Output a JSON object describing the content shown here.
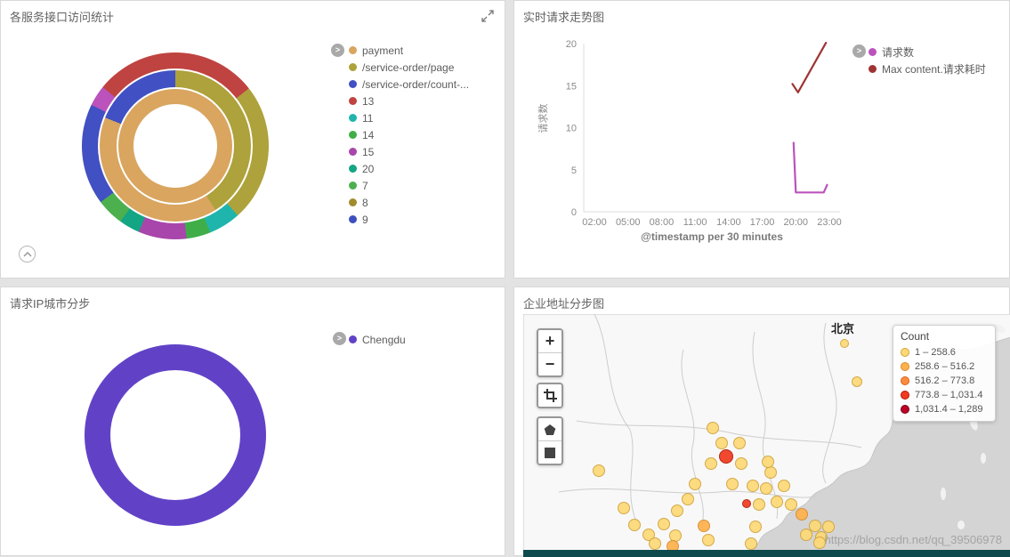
{
  "panels": {
    "services": {
      "title": "各服务接口访问统计",
      "legend": [
        {
          "label": "payment",
          "color": "#d9a55f"
        },
        {
          "label": "/service-order/page",
          "color": "#ada23b"
        },
        {
          "label": "/service-order/count-...",
          "color": "#4150c2"
        },
        {
          "label": "13",
          "color": "#bf4340"
        },
        {
          "label": "11",
          "color": "#1fb5ad"
        },
        {
          "label": "14",
          "color": "#3fae49"
        },
        {
          "label": "15",
          "color": "#a846ab"
        },
        {
          "label": "20",
          "color": "#13a584"
        },
        {
          "label": "7",
          "color": "#4cb04f"
        },
        {
          "label": "8",
          "color": "#a08b2d"
        },
        {
          "label": "9",
          "color": "#3b50bd"
        }
      ]
    },
    "trend": {
      "title": "实时请求走势图",
      "ylabel": "请求数",
      "xlabel": "@timestamp per 30 minutes",
      "legend": [
        {
          "label": "请求数",
          "color": "#bc52bc"
        },
        {
          "label": "Max content.请求耗时",
          "color": "#9e3533"
        }
      ]
    },
    "city": {
      "title": "请求IP城市分步",
      "legend": [
        {
          "label": "Chengdu",
          "color": "#6142c7"
        }
      ]
    },
    "map": {
      "title": "企业地址分步图",
      "beijing_label": "北京",
      "legend_title": "Count",
      "watermark": "https://blog.csdn.net/qq_39506978",
      "controls": {
        "zoom_in": "+",
        "zoom_out": "−"
      }
    }
  },
  "chart_data": [
    {
      "type": "pie",
      "variant": "sunburst",
      "title": "各服务接口访问统计",
      "legend": [
        "payment",
        "/service-order/page",
        "/service-order/count-...",
        "13",
        "11",
        "14",
        "15",
        "20",
        "7",
        "8",
        "9"
      ],
      "rings": {
        "inner": [
          {
            "label": "payment",
            "color": "#d9a55f",
            "from": 0,
            "to": 360
          }
        ],
        "middle": [
          {
            "label": "/service-order/page",
            "color": "#ada23b",
            "from": 0,
            "to": 148
          },
          {
            "label": "payment",
            "color": "#d9a55f",
            "from": 148,
            "to": 292
          },
          {
            "label": "/service-order/count-...",
            "color": "#4150c2",
            "from": 292,
            "to": 360
          }
        ],
        "outer": [
          {
            "label": "13",
            "color": "#bf4340",
            "from": 0,
            "to": 52
          },
          {
            "label": "8",
            "color": "#ada23b",
            "from": 52,
            "to": 138
          },
          {
            "label": "11",
            "color": "#1fb5ad",
            "from": 138,
            "to": 158
          },
          {
            "label": "14",
            "color": "#3fae49",
            "from": 158,
            "to": 173
          },
          {
            "label": "15",
            "color": "#a846ab",
            "from": 173,
            "to": 203
          },
          {
            "label": "20",
            "color": "#13a584",
            "from": 203,
            "to": 216
          },
          {
            "label": "7",
            "color": "#4cb04f",
            "from": 216,
            "to": 233
          },
          {
            "label": "9",
            "color": "#4150c2",
            "from": 233,
            "to": 296
          },
          {
            "label": "15",
            "color": "#bc52bc",
            "from": 296,
            "to": 309
          },
          {
            "label": "13",
            "color": "#bf4340",
            "from": 309,
            "to": 360
          }
        ]
      }
    },
    {
      "type": "line",
      "title": "实时请求走势图",
      "xlabel": "@timestamp per 30 minutes",
      "ylabel": "请求数",
      "ylim": [
        0,
        20
      ],
      "yticks": [
        0,
        5,
        10,
        15,
        20
      ],
      "xticks": [
        "02:00",
        "05:00",
        "08:00",
        "11:00",
        "14:00",
        "17:00",
        "20:00",
        "23:00"
      ],
      "tick_hours": [
        2,
        5,
        8,
        11,
        14,
        17,
        20,
        23
      ],
      "series": [
        {
          "name": "请求数",
          "color": "#bc52bc",
          "points": [
            [
              19.8,
              8.2
            ],
            [
              20.0,
              2.3
            ],
            [
              22.5,
              2.3
            ],
            [
              22.8,
              3.2
            ]
          ]
        },
        {
          "name": "Max content.请求耗时",
          "color": "#9e3533",
          "points": [
            [
              19.7,
              15.2
            ],
            [
              20.2,
              14.2
            ],
            [
              22.7,
              20.1
            ]
          ]
        }
      ]
    },
    {
      "type": "pie",
      "title": "请求IP城市分步",
      "categories": [
        "Chengdu"
      ],
      "values": [
        100
      ],
      "color": "#6142c7"
    },
    {
      "type": "map",
      "title": "企业地址分步图",
      "legend_title": "Count",
      "city_label": "北京",
      "bins": [
        {
          "label": "1 – 258.6",
          "color": "#FED976",
          "stroke": "#cfa33c"
        },
        {
          "label": "258.6 – 516.2",
          "color": "#FEB24C",
          "stroke": "#d98a2b"
        },
        {
          "label": "516.2 – 773.8",
          "color": "#FD8D3C",
          "stroke": "#d3641f"
        },
        {
          "label": "773.8 – 1,031.4",
          "color": "#F03B20",
          "stroke": "#b21500"
        },
        {
          "label": "1,031.4 – 1,289",
          "color": "#BD0026",
          "stroke": "#7c0019"
        }
      ],
      "markers": [
        [
          361,
          33,
          5,
          0
        ],
        [
          375,
          76,
          6,
          0
        ],
        [
          85,
          176,
          7,
          0
        ],
        [
          113,
          218,
          7,
          0
        ],
        [
          125,
          237,
          7,
          0
        ],
        [
          141,
          248,
          7,
          0
        ],
        [
          158,
          236,
          7,
          0
        ],
        [
          171,
          249,
          7,
          0
        ],
        [
          173,
          221,
          7,
          0
        ],
        [
          185,
          208,
          7,
          0
        ],
        [
          193,
          191,
          7,
          0
        ],
        [
          203,
          238,
          7,
          1
        ],
        [
          208,
          254,
          7,
          0
        ],
        [
          213,
          128,
          7,
          0
        ],
        [
          211,
          168,
          7,
          0
        ],
        [
          223,
          145,
          7,
          0
        ],
        [
          228,
          160,
          8,
          3
        ],
        [
          235,
          191,
          7,
          0
        ],
        [
          243,
          145,
          7,
          0
        ],
        [
          245,
          168,
          7,
          0
        ],
        [
          251,
          213,
          5,
          3
        ],
        [
          258,
          193,
          7,
          0
        ],
        [
          261,
          239,
          7,
          0
        ],
        [
          265,
          214,
          7,
          0
        ],
        [
          273,
          196,
          7,
          0
        ],
        [
          278,
          178,
          7,
          0
        ],
        [
          285,
          211,
          7,
          0
        ],
        [
          293,
          193,
          7,
          0
        ],
        [
          301,
          214,
          7,
          0
        ],
        [
          313,
          225,
          7,
          1
        ],
        [
          318,
          248,
          7,
          0
        ],
        [
          328,
          238,
          7,
          0
        ],
        [
          335,
          251,
          7,
          0
        ],
        [
          343,
          239,
          7,
          0
        ],
        [
          275,
          166,
          7,
          0
        ],
        [
          333,
          257,
          7,
          0
        ],
        [
          256,
          258,
          7,
          0
        ],
        [
          148,
          258,
          7,
          0
        ],
        [
          168,
          261,
          7,
          1
        ]
      ]
    }
  ]
}
